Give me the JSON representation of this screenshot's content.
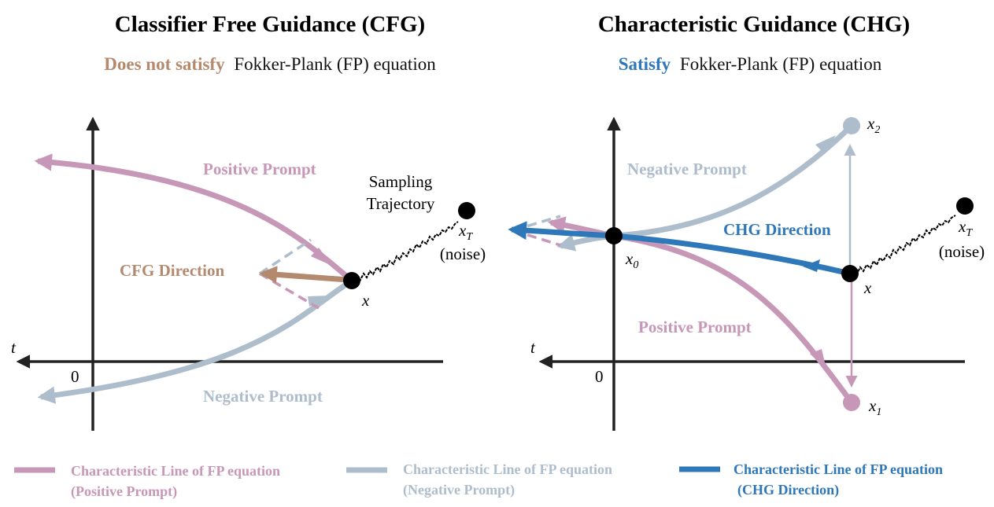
{
  "colors": {
    "positive": "#c797b7",
    "negative": "#aebdcc",
    "chg": "#2e77b9",
    "cfg": "#b38a6e",
    "axis": "#222222",
    "point": "#000000"
  },
  "left_panel": {
    "title": "Classifier Free Guidance (CFG)",
    "subtitle_emph": "Does not satisfy",
    "subtitle_rest": "Fokker-Plank (FP) equation",
    "t_label": "t",
    "origin_label": "0",
    "positive_label": "Positive Prompt",
    "negative_label": "Negative Prompt",
    "sampling_line1": "Sampling",
    "sampling_line2": "Trajectory",
    "direction_label": "CFG Direction",
    "x_label": "x",
    "xT_base": "x",
    "xT_sub": "T",
    "noise_label": "(noise)"
  },
  "right_panel": {
    "title": "Characteristic Guidance (CHG)",
    "subtitle_emph": "Satisfy",
    "subtitle_rest": "Fokker-Plank (FP) equation",
    "t_label": "t",
    "origin_label": "0",
    "positive_label": "Positive Prompt",
    "negative_label": "Negative Prompt",
    "direction_label": "CHG Direction",
    "x_label": "x",
    "x0_base": "x",
    "x0_sub": "0",
    "x1_base": "x",
    "x1_sub": "1",
    "x2_base": "x",
    "x2_sub": "2",
    "xT_base": "x",
    "xT_sub": "T",
    "noise_label": "(noise)"
  },
  "legend": [
    {
      "line1": "Characteristic Line of FP equation",
      "line2": "(Positive Prompt)",
      "color": "#c797b7"
    },
    {
      "line1": "Characteristic Line of FP equation",
      "line2": "(Negative Prompt)",
      "color": "#aebdcc"
    },
    {
      "line1": "Characteristic Line of FP equation",
      "line2": "(CHG Direction)",
      "color": "#2e77b9"
    }
  ]
}
